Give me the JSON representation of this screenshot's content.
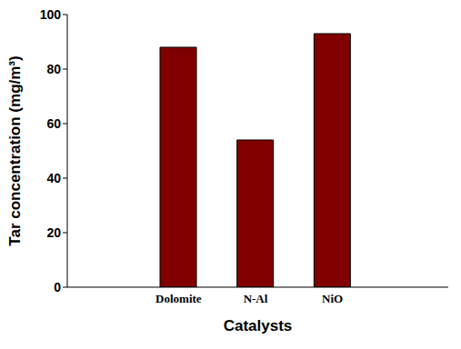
{
  "chart_data": {
    "type": "bar",
    "categories": [
      "Dolomite",
      "N-Al",
      "NiO"
    ],
    "values": [
      88,
      54,
      93
    ],
    "color": "#800000",
    "x_label": "Catalysts",
    "y_label": "Tar concentration (mg/m³)",
    "ylim": [
      0,
      100
    ],
    "yticks": [
      0,
      20,
      40,
      60,
      80,
      100
    ],
    "grid": false
  }
}
